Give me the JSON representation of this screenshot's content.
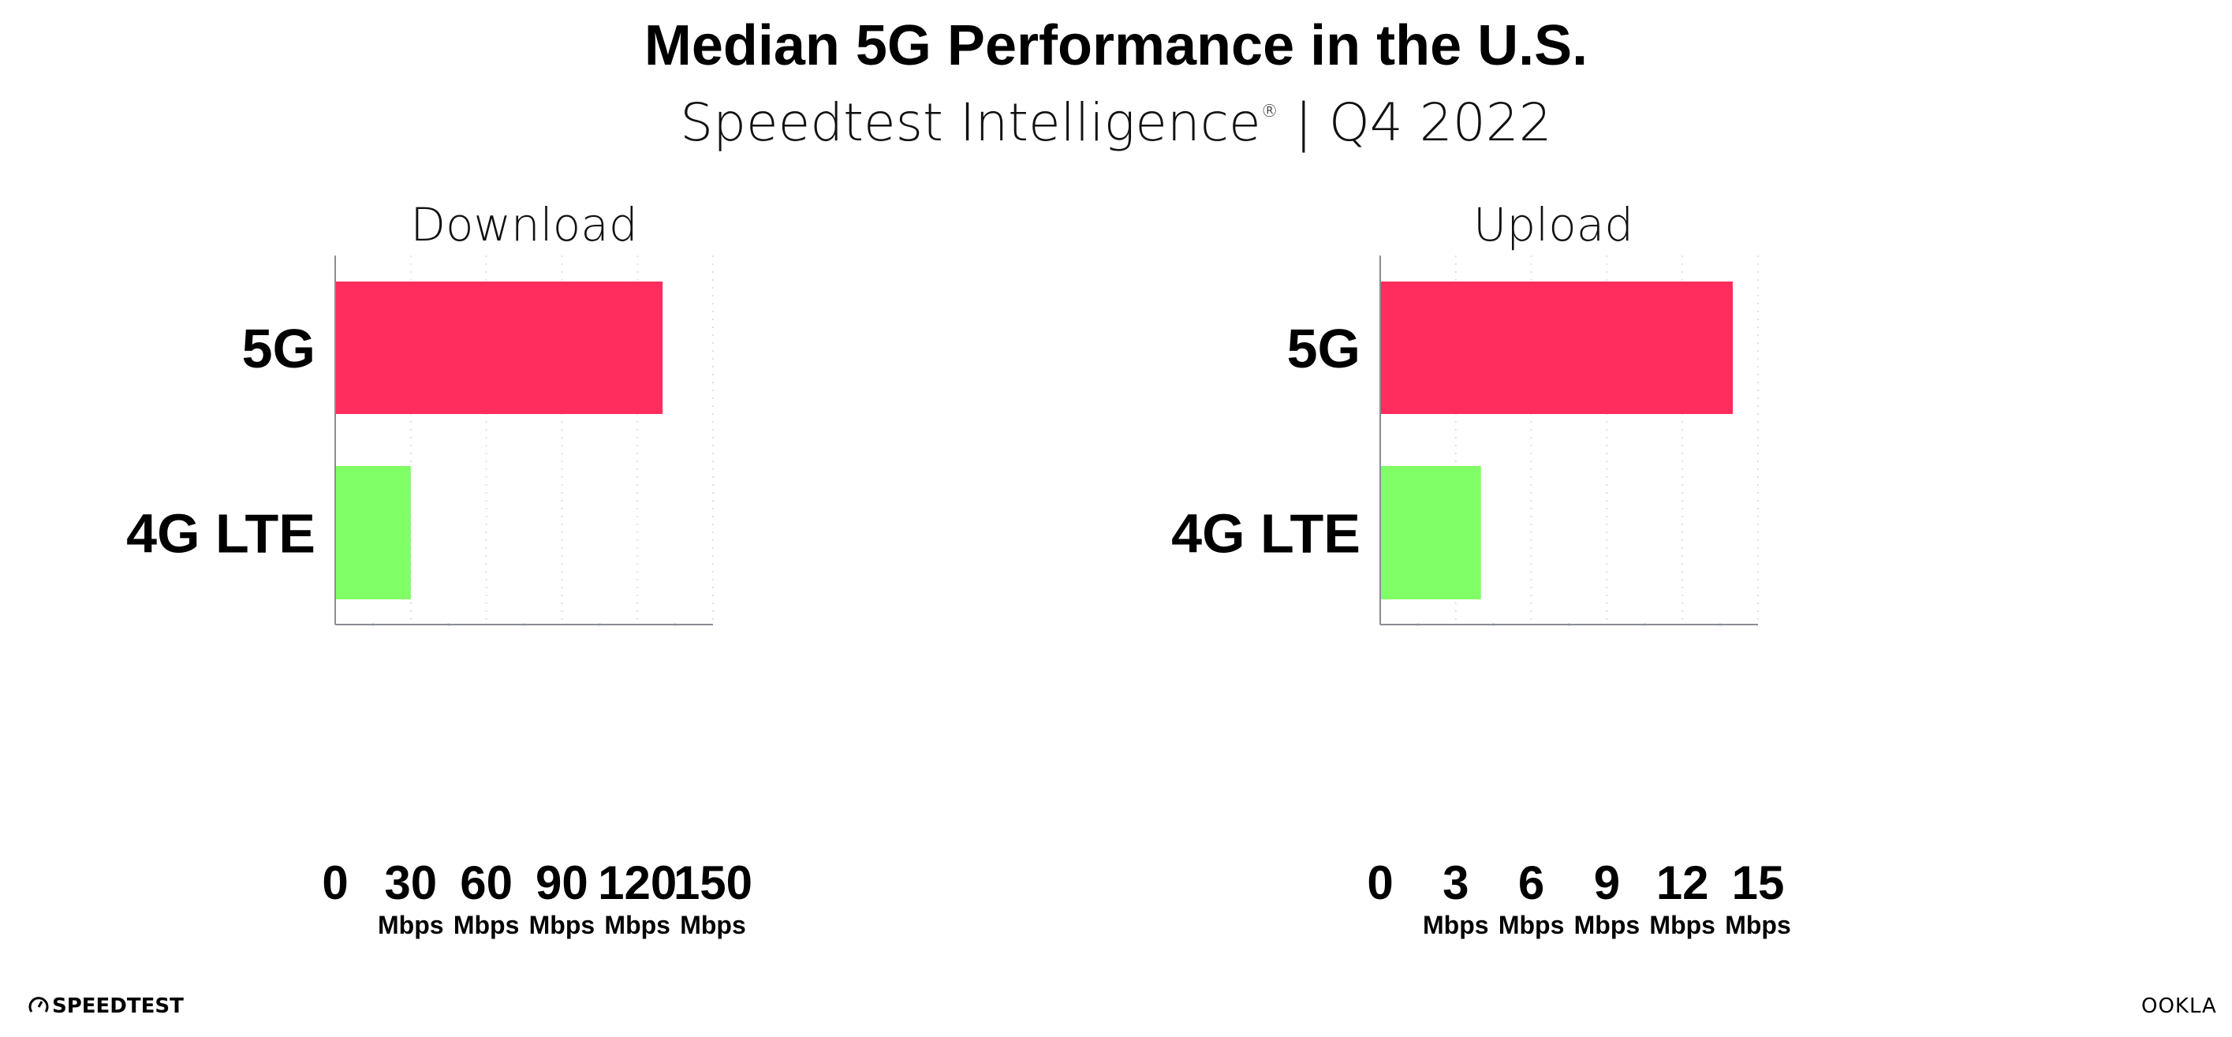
{
  "header": {
    "title": "Median 5G Performance in the U.S.",
    "subtitle": "Speedtest Intelligence",
    "subtitle_mark": "®",
    "subtitle_suffix": " | Q4 2022"
  },
  "colors": {
    "5G": "#ff2d5d",
    "4G LTE": "#80ff66",
    "axis": "#8a8d93",
    "grid": "#dde0e8"
  },
  "chart_data": [
    {
      "type": "bar",
      "orientation": "horizontal",
      "title": "Download",
      "categories": [
        "5G",
        "4G LTE"
      ],
      "values": [
        130,
        30
      ],
      "xlim": [
        0,
        150
      ],
      "ticks": [
        "0",
        "30",
        "60",
        "90",
        "120",
        "150"
      ],
      "tick_values": [
        0,
        30,
        60,
        90,
        120,
        150
      ],
      "tick_unit": "Mbps",
      "grid": true
    },
    {
      "type": "bar",
      "orientation": "horizontal",
      "title": "Upload",
      "categories": [
        "5G",
        "4G LTE"
      ],
      "values": [
        14,
        4
      ],
      "xlim": [
        0,
        15
      ],
      "ticks": [
        "0",
        "3",
        "6",
        "9",
        "12",
        "15"
      ],
      "tick_values": [
        0,
        3,
        6,
        9,
        12,
        15
      ],
      "tick_unit": "Mbps",
      "grid": true
    }
  ],
  "footer": {
    "left_logo": "SPEEDTEST",
    "right_logo": "OOKLA"
  }
}
